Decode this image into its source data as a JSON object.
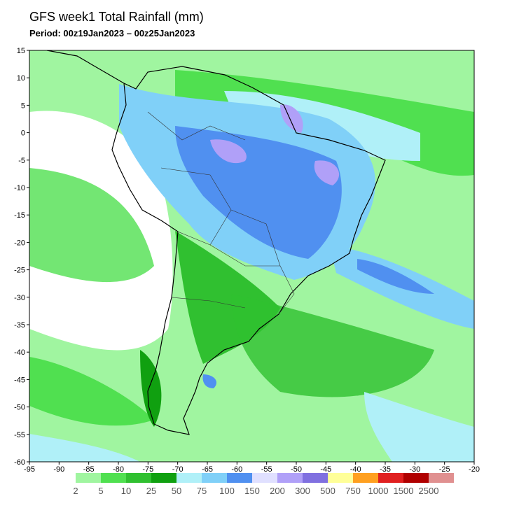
{
  "header": {
    "title": "GFS week1 Total Rainfall (mm)",
    "period": "Period: 00z19Jan2023 – 00z25Jan2023"
  },
  "map": {
    "xlim": [
      -95,
      -20
    ],
    "ylim": [
      -60,
      15
    ],
    "xticks": [
      -95,
      -90,
      -85,
      -80,
      -75,
      -70,
      -65,
      -60,
      -55,
      -50,
      -45,
      -40,
      -35,
      -30,
      -25,
      -20
    ],
    "yticks": [
      15,
      10,
      5,
      0,
      -5,
      -10,
      -15,
      -20,
      -25,
      -30,
      -35,
      -40,
      -45,
      -50,
      -55,
      -60
    ]
  },
  "colorbar": {
    "labels": [
      "2",
      "5",
      "10",
      "25",
      "50",
      "75",
      "100",
      "150",
      "200",
      "300",
      "500",
      "750",
      "1000",
      "1500",
      "2500"
    ],
    "colors": [
      "#a0f5a0",
      "#50e050",
      "#30c030",
      "#10a010",
      "#b0f0f8",
      "#80d0f8",
      "#5090f0",
      "#e0e0ff",
      "#b0a0f8",
      "#8070e0",
      "#ffff98",
      "#ffa020",
      "#e02020",
      "#b00000",
      "#e09090"
    ]
  }
}
